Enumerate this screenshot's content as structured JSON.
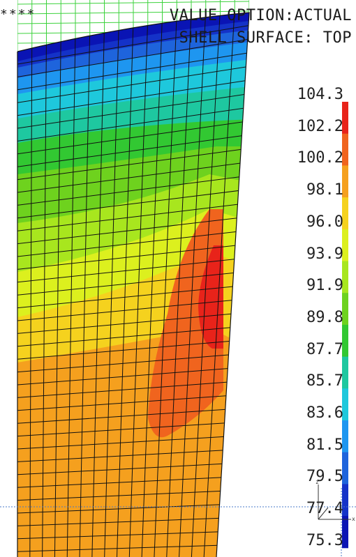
{
  "header": {
    "left_marker": "****",
    "line1": "VALUE OPTION:ACTUAL",
    "line2": "SHELL SURFACE: TOP"
  },
  "legend": {
    "labels": [
      "104.3",
      "102.2",
      "100.2",
      "98.1",
      "96.0",
      "93.9",
      "91.9",
      "89.8",
      "87.7",
      "85.7",
      "83.6",
      "81.5",
      "79.5",
      "77.4",
      "75.3"
    ],
    "colors": [
      "#e8231a",
      "#f0641e",
      "#f5a01e",
      "#f5d21e",
      "#dcf01e",
      "#a8e61e",
      "#6ed21e",
      "#32c832",
      "#1ec8a0",
      "#1ec8dc",
      "#1e96f0",
      "#1e64dc",
      "#1432c8",
      "#0a14b4"
    ]
  },
  "axis_triad": {
    "z_label": "z",
    "x_label": "x"
  },
  "colors": {
    "mesh_line": "#111111",
    "undeformed_mesh": "#3cd23c",
    "guide_line": "#4a78c8",
    "orange_band": "#f5a01e",
    "red_orange": "#f0641e",
    "red": "#e8231a"
  }
}
